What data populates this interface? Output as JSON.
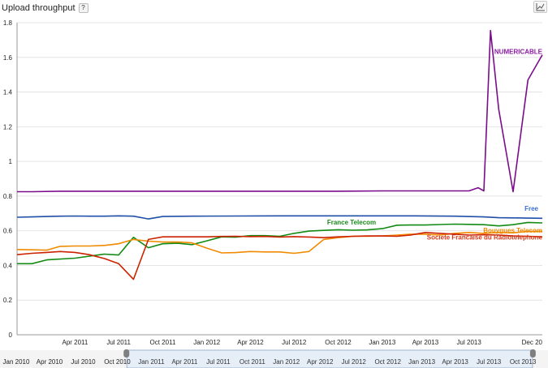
{
  "header": {
    "title": "Upload throughput",
    "help_label": "?",
    "chart_type_icon": "line-chart-icon"
  },
  "chart_data": {
    "type": "line",
    "title": "Upload throughput",
    "xlabel": "",
    "ylabel": "",
    "ylim": [
      0,
      1.8
    ],
    "yticks": [
      0,
      0.2,
      0.4,
      0.6,
      0.8,
      1,
      1.2,
      1.4,
      1.6,
      1.8
    ],
    "ytick_labels": [
      "0",
      "0.2",
      "0.4",
      "0.6",
      "0.8",
      "1",
      "1.2",
      "1.4",
      "1.6",
      "1.8"
    ],
    "xlim": [
      "2010-12-01",
      "2013-12-01"
    ],
    "xticks": [
      "2011-04-01",
      "2011-07-01",
      "2011-10-01",
      "2012-01-01",
      "2012-04-01",
      "2012-07-01",
      "2012-10-01",
      "2013-01-01",
      "2013-04-01",
      "2013-07-01",
      "2013-10-01",
      "2013-12-01"
    ],
    "xtick_labels": [
      "Apr 2011",
      "Jul 2011",
      "Oct 2011",
      "Jan 2012",
      "Apr 2012",
      "Jul 2012",
      "Oct 2012",
      "Jan 2013",
      "Apr 2013",
      "Jul 2013",
      "",
      "Dec 20"
    ],
    "grid": "horizontal",
    "series": [
      {
        "name": "NUMERICABLE",
        "color": "#7b0c8c",
        "label_color": "#8e1aa6",
        "x": [
          "2010-12-01",
          "2011-01-01",
          "2011-03-01",
          "2011-06-01",
          "2011-09-01",
          "2012-01-01",
          "2012-06-01",
          "2012-10-01",
          "2013-01-01",
          "2013-03-01",
          "2013-05-01",
          "2013-06-01",
          "2013-07-01",
          "2013-07-20",
          "2013-08-01",
          "2013-08-15",
          "2013-09-01",
          "2013-10-01",
          "2013-11-01",
          "2013-12-01"
        ],
        "y": [
          0.825,
          0.825,
          0.828,
          0.828,
          0.828,
          0.828,
          0.828,
          0.828,
          0.83,
          0.83,
          0.83,
          0.83,
          0.83,
          0.848,
          0.83,
          1.755,
          1.3,
          0.825,
          1.47,
          1.615
        ]
      },
      {
        "name": "Free",
        "color": "#1f4fa8",
        "label_color": "#3a6fd0",
        "x": [
          "2010-12-01",
          "2011-01-01",
          "2011-02-01",
          "2011-03-01",
          "2011-04-01",
          "2011-05-01",
          "2011-06-01",
          "2011-07-01",
          "2011-08-01",
          "2011-09-01",
          "2011-10-01",
          "2011-12-01",
          "2012-03-01",
          "2012-06-01",
          "2012-09-01",
          "2012-12-01",
          "2013-03-01",
          "2013-06-01",
          "2013-08-01",
          "2013-09-01",
          "2013-10-01",
          "2013-11-01",
          "2013-12-01"
        ],
        "y": [
          0.678,
          0.68,
          0.682,
          0.684,
          0.685,
          0.684,
          0.684,
          0.686,
          0.684,
          0.668,
          0.682,
          0.684,
          0.685,
          0.686,
          0.686,
          0.686,
          0.686,
          0.684,
          0.68,
          0.675,
          0.674,
          0.673,
          0.672
        ]
      },
      {
        "name": "France Telecom",
        "color": "#138a13",
        "label_color": "#1a8a1a",
        "x": [
          "2010-12-01",
          "2011-01-01",
          "2011-02-01",
          "2011-04-01",
          "2011-06-01",
          "2011-07-01",
          "2011-08-01",
          "2011-09-01",
          "2011-10-01",
          "2011-11-01",
          "2011-12-01",
          "2012-01-01",
          "2012-02-01",
          "2012-03-01",
          "2012-04-01",
          "2012-05-01",
          "2012-06-01",
          "2012-07-01",
          "2012-08-01",
          "2012-09-01",
          "2012-10-01",
          "2012-11-01",
          "2012-12-01",
          "2013-01-01",
          "2013-02-01",
          "2013-03-01",
          "2013-04-01",
          "2013-05-01",
          "2013-06-01",
          "2013-07-01",
          "2013-08-01",
          "2013-09-01",
          "2013-10-01",
          "2013-11-01",
          "2013-12-01"
        ],
        "y": [
          0.41,
          0.41,
          0.432,
          0.442,
          0.465,
          0.46,
          0.562,
          0.502,
          0.525,
          0.528,
          0.52,
          0.542,
          0.565,
          0.563,
          0.572,
          0.572,
          0.568,
          0.585,
          0.598,
          0.602,
          0.606,
          0.603,
          0.605,
          0.612,
          0.632,
          0.633,
          0.633,
          0.636,
          0.638,
          0.637,
          0.635,
          0.628,
          0.635,
          0.648,
          0.645
        ]
      },
      {
        "name": "Bouygues Telecom",
        "color": "#f08a00",
        "label_color": "#f08a00",
        "x": [
          "2010-12-01",
          "2011-01-01",
          "2011-02-01",
          "2011-03-01",
          "2011-04-01",
          "2011-05-01",
          "2011-06-01",
          "2011-07-01",
          "2011-08-01",
          "2011-09-01",
          "2011-10-01",
          "2011-11-01",
          "2011-12-01",
          "2012-01-01",
          "2012-02-01",
          "2012-03-01",
          "2012-04-01",
          "2012-05-01",
          "2012-06-01",
          "2012-07-01",
          "2012-08-01",
          "2012-09-01",
          "2012-10-01",
          "2012-11-01",
          "2012-12-01",
          "2013-01-01",
          "2013-02-01",
          "2013-03-01",
          "2013-04-01",
          "2013-05-01",
          "2013-06-01",
          "2013-07-01",
          "2013-08-01",
          "2013-09-01",
          "2013-10-01",
          "2013-11-01",
          "2013-12-01"
        ],
        "y": [
          0.492,
          0.49,
          0.488,
          0.51,
          0.512,
          0.512,
          0.515,
          0.525,
          0.55,
          0.54,
          0.535,
          0.535,
          0.53,
          0.5,
          0.472,
          0.474,
          0.48,
          0.478,
          0.478,
          0.47,
          0.48,
          0.55,
          0.56,
          0.568,
          0.568,
          0.57,
          0.575,
          0.58,
          0.58,
          0.575,
          0.585,
          0.59,
          0.585,
          0.59,
          0.588,
          0.596,
          0.595
        ]
      },
      {
        "name": "Societe Francaise du Radiotelephone",
        "color": "#cc2200",
        "label_color": "#d43a1a",
        "x": [
          "2010-12-01",
          "2011-01-01",
          "2011-02-01",
          "2011-03-01",
          "2011-04-01",
          "2011-05-01",
          "2011-06-01",
          "2011-07-01",
          "2011-08-01",
          "2011-09-01",
          "2011-10-01",
          "2011-11-01",
          "2011-12-01",
          "2012-01-01",
          "2012-02-01",
          "2012-03-01",
          "2012-04-01",
          "2012-05-01",
          "2012-06-01",
          "2012-07-01",
          "2012-08-01",
          "2012-09-01",
          "2012-10-01",
          "2012-11-01",
          "2012-12-01",
          "2013-01-01",
          "2013-02-01",
          "2013-03-01",
          "2013-04-01",
          "2013-05-01",
          "2013-06-01",
          "2013-07-01",
          "2013-08-01",
          "2013-09-01",
          "2013-10-01",
          "2013-11-01",
          "2013-12-01"
        ],
        "y": [
          0.462,
          0.47,
          0.475,
          0.48,
          0.475,
          0.462,
          0.44,
          0.41,
          0.32,
          0.55,
          0.565,
          0.565,
          0.565,
          0.565,
          0.567,
          0.568,
          0.566,
          0.567,
          0.564,
          0.566,
          0.564,
          0.56,
          0.565,
          0.568,
          0.57,
          0.57,
          0.568,
          0.575,
          0.59,
          0.585,
          0.58,
          0.575,
          0.577,
          0.575,
          0.57,
          0.568,
          0.565
        ]
      }
    ]
  },
  "navigator": {
    "labels": [
      "Jan 2010",
      "Apr 2010",
      "Jul 2010",
      "Oct 2010",
      "Jan 2011",
      "Apr 2011",
      "Jul 2011",
      "Oct 2011",
      "Jan 2012",
      "Apr 2012",
      "Jul 2012",
      "Oct 2012",
      "Jan 2013",
      "Apr 2013",
      "Jul 2013",
      "Oct 2013"
    ],
    "range_start": "2010-12-01",
    "range_end": "2013-12-01"
  }
}
